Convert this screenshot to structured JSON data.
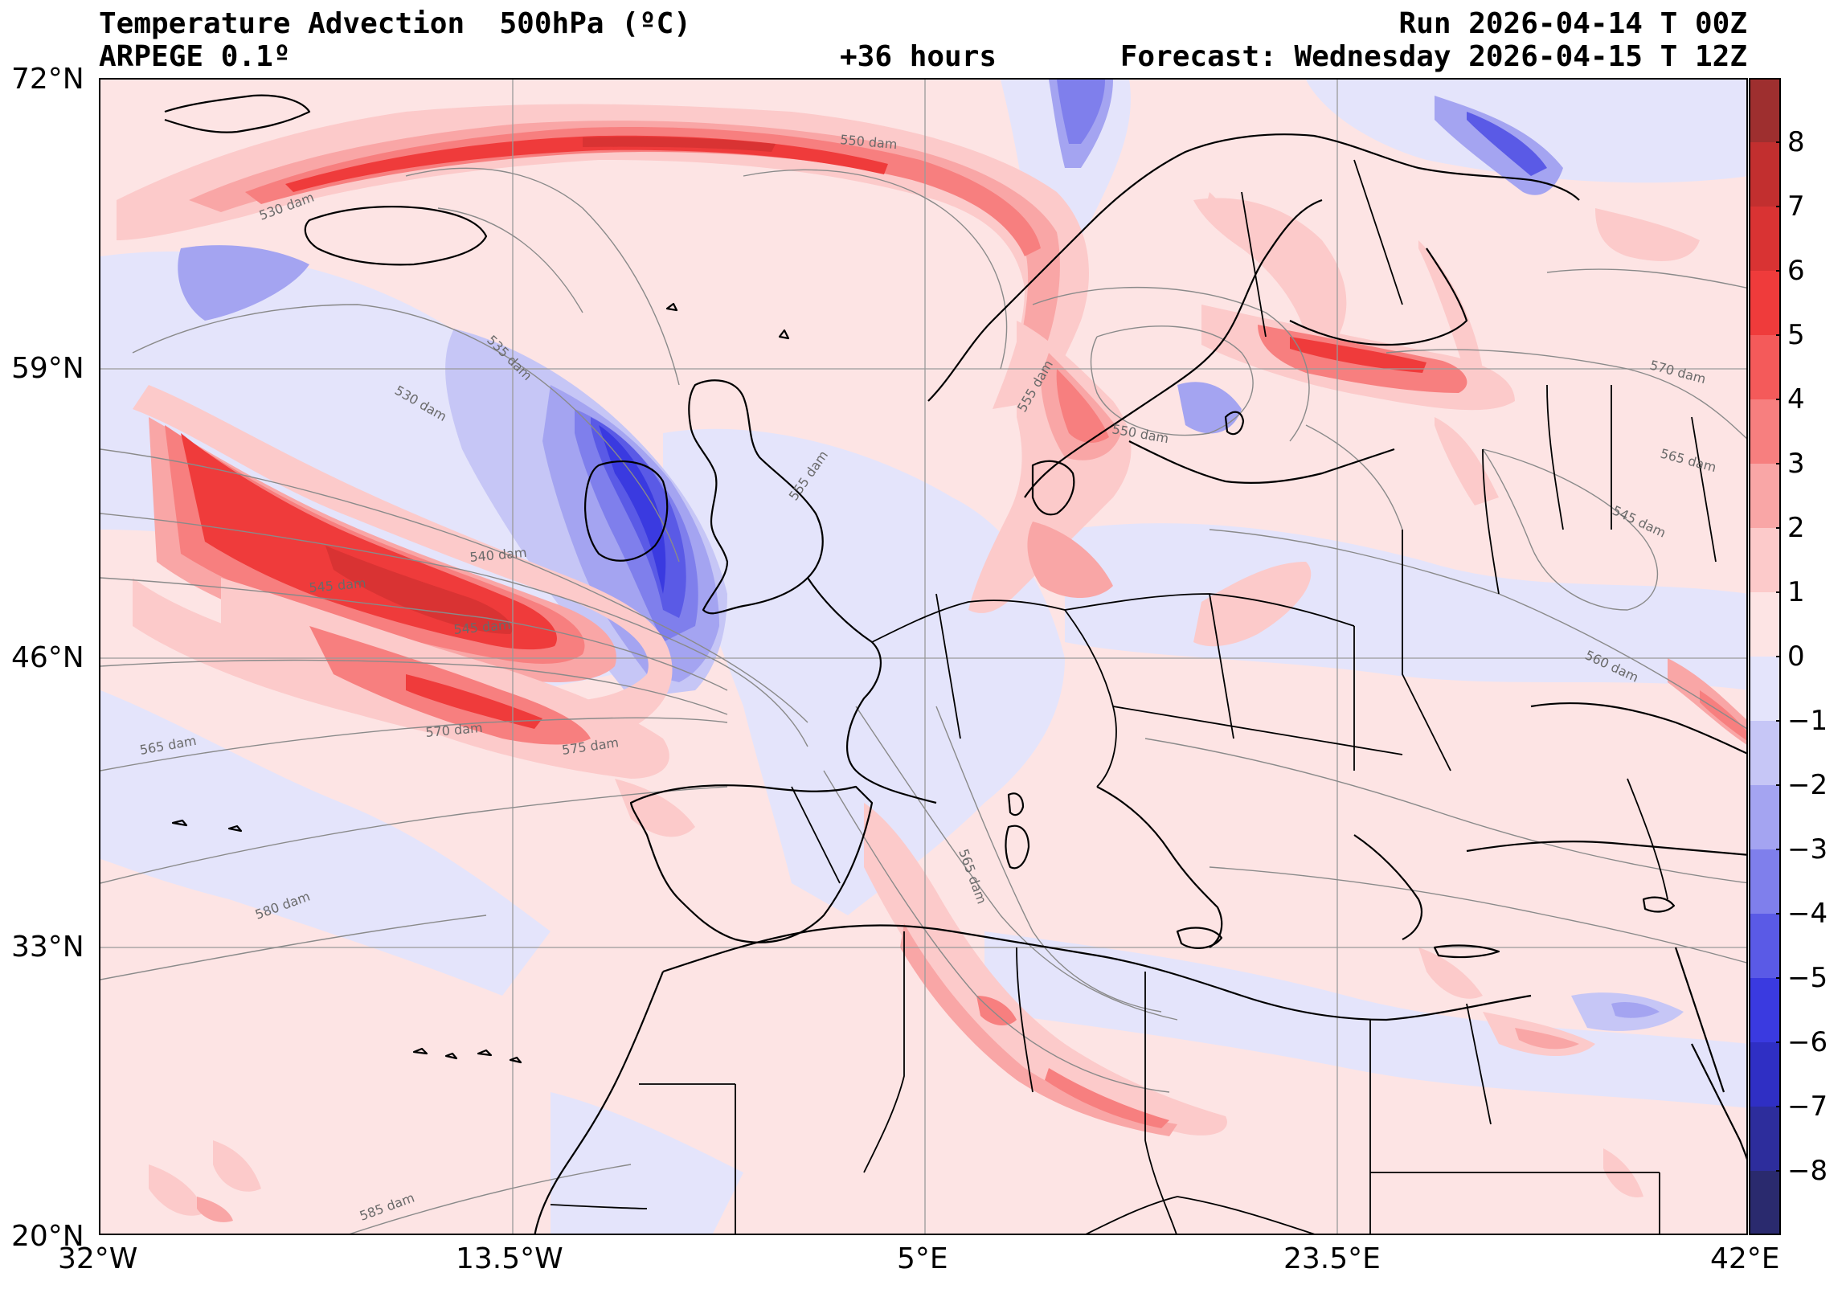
{
  "header": {
    "title_left": "Temperature Advection  500hPa (ºC)",
    "model": "ARPEGE 0.1º",
    "lead": "+36 hours",
    "run": "Run 2026-04-14 T 00Z",
    "forecast": "Forecast: Wednesday 2026-04-15 T 12Z"
  },
  "axes": {
    "lat_labels": [
      "72°N",
      "59°N",
      "46°N",
      "33°N",
      "20°N"
    ],
    "lon_labels": [
      "32°W",
      "13.5°W",
      "5°E",
      "23.5°E",
      "42°E"
    ],
    "lat_range": [
      20,
      72
    ],
    "lon_range": [
      -32,
      42
    ],
    "grid": true
  },
  "colorbar": {
    "ticks": [
      "8",
      "7",
      "6",
      "5",
      "4",
      "3",
      "2",
      "1",
      "0",
      "−1",
      "−2",
      "−3",
      "−4",
      "−5",
      "−6",
      "−7",
      "−8"
    ],
    "range": [
      -9,
      9
    ],
    "warm_colors": [
      "#fde4e4",
      "#fccaca",
      "#f9a6a6",
      "#f77f7f",
      "#f45a5a",
      "#ef3b3b",
      "#d93333",
      "#c22f2f",
      "#9e2f2f"
    ],
    "cold_colors": [
      "#e4e4fb",
      "#c6c6f6",
      "#a4a4f1",
      "#7f7fec",
      "#5a5ae6",
      "#3a3ae0",
      "#2f2fc4",
      "#2d2d9c",
      "#2a2a6e"
    ]
  },
  "contour_labels": [
    "530 dam",
    "535 dam",
    "540 dam",
    "545 dam",
    "545 dam",
    "550 dam",
    "550 dam",
    "555 dam",
    "560 dam",
    "565 dam",
    "565 dam",
    "565 dam",
    "570 dam",
    "570 dam",
    "575 dam",
    "580 dam",
    "585 dam",
    "530 dam",
    "555 dam",
    "545 dam"
  ]
}
